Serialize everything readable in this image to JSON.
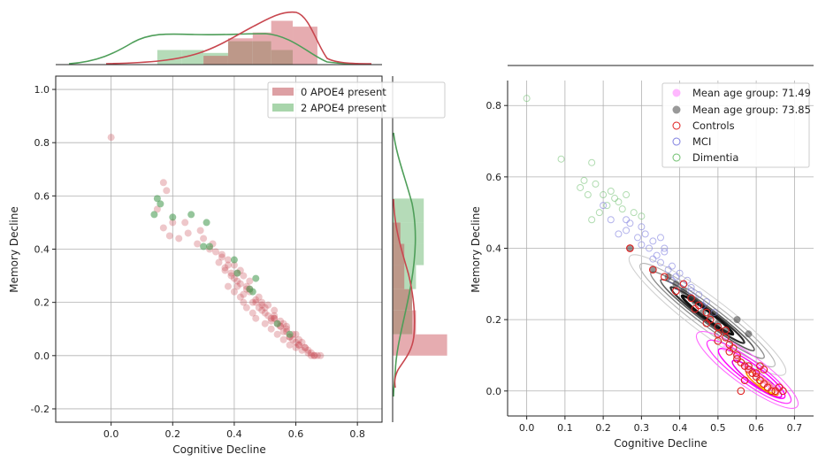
{
  "colors": {
    "red": "#c8474f",
    "green": "#4e9e59",
    "red_fill": "#dda0a4",
    "green_fill": "#a8d5ab",
    "overlap_fill": "#b8ad8c",
    "controls": "#e02020",
    "mci": "#8080e0",
    "dimentia": "#70c070",
    "magenta": "#ff00ff",
    "dark": "#3c3c3c"
  },
  "chart_data": [
    {
      "id": "left-joint",
      "type": "scatter",
      "xlabel": "Cognitive Decline",
      "ylabel": "Memory Decline",
      "xlim": [
        -0.18,
        0.88
      ],
      "ylim": [
        -0.25,
        1.05
      ],
      "xticks": [
        "0.0",
        "0.2",
        "0.4",
        "0.6",
        "0.8"
      ],
      "xtick_values": [
        0.0,
        0.2,
        0.4,
        0.6,
        0.8
      ],
      "yticks": [
        "-0.2",
        "0.0",
        "0.2",
        "0.4",
        "0.6",
        "0.8",
        "1.0"
      ],
      "ytick_values": [
        -0.2,
        0.0,
        0.2,
        0.4,
        0.6,
        0.8,
        1.0
      ],
      "grid": true,
      "legend_position": "top-right",
      "series": [
        {
          "name": "0 APOE4 present",
          "color": "#c8474f",
          "x": [
            0.0,
            0.17,
            0.18,
            0.2,
            0.17,
            0.15,
            0.19,
            0.22,
            0.25,
            0.24,
            0.28,
            0.3,
            0.29,
            0.33,
            0.32,
            0.36,
            0.38,
            0.37,
            0.4,
            0.39,
            0.42,
            0.41,
            0.43,
            0.44,
            0.45,
            0.38,
            0.4,
            0.42,
            0.45,
            0.47,
            0.48,
            0.5,
            0.49,
            0.51,
            0.52,
            0.53,
            0.55,
            0.54,
            0.56,
            0.57,
            0.58,
            0.6,
            0.59,
            0.61,
            0.62,
            0.63,
            0.64,
            0.65,
            0.66,
            0.67,
            0.68,
            0.43,
            0.44,
            0.46,
            0.47,
            0.5,
            0.52,
            0.54,
            0.56,
            0.58,
            0.48,
            0.51,
            0.53,
            0.55,
            0.57,
            0.6,
            0.62,
            0.64,
            0.66,
            0.4,
            0.41,
            0.43,
            0.46,
            0.49,
            0.52,
            0.55,
            0.58,
            0.6,
            0.35,
            0.37,
            0.39,
            0.42,
            0.44,
            0.47,
            0.5,
            0.53,
            0.56,
            0.59,
            0.61,
            0.63,
            0.65,
            0.34,
            0.36,
            0.38,
            0.41,
            0.45,
            0.49,
            0.53,
            0.57,
            0.61
          ],
          "y": [
            0.82,
            0.65,
            0.62,
            0.5,
            0.48,
            0.55,
            0.45,
            0.44,
            0.46,
            0.5,
            0.42,
            0.44,
            0.47,
            0.42,
            0.4,
            0.38,
            0.36,
            0.33,
            0.34,
            0.3,
            0.32,
            0.28,
            0.3,
            0.26,
            0.28,
            0.26,
            0.24,
            0.22,
            0.24,
            0.2,
            0.18,
            0.16,
            0.19,
            0.15,
            0.13,
            0.14,
            0.11,
            0.12,
            0.09,
            0.1,
            0.07,
            0.05,
            0.06,
            0.04,
            0.02,
            0.03,
            0.01,
            0.0,
            0.0,
            0.0,
            0.0,
            0.2,
            0.18,
            0.16,
            0.14,
            0.12,
            0.1,
            0.08,
            0.06,
            0.04,
            0.22,
            0.19,
            0.17,
            0.13,
            0.11,
            0.08,
            0.05,
            0.02,
            0.0,
            0.29,
            0.26,
            0.23,
            0.2,
            0.17,
            0.14,
            0.11,
            0.07,
            0.03,
            0.35,
            0.32,
            0.31,
            0.27,
            0.25,
            0.21,
            0.18,
            0.15,
            0.12,
            0.08,
            0.06,
            0.03,
            0.01,
            0.39,
            0.37,
            0.34,
            0.31,
            0.25,
            0.2,
            0.14,
            0.09,
            0.04
          ]
        },
        {
          "name": "2 APOE4 present",
          "color": "#4e9e59",
          "x": [
            0.15,
            0.16,
            0.2,
            0.14,
            0.26,
            0.31,
            0.3,
            0.32,
            0.4,
            0.41,
            0.47,
            0.45,
            0.46,
            0.54,
            0.58
          ],
          "y": [
            0.59,
            0.57,
            0.52,
            0.53,
            0.53,
            0.5,
            0.41,
            0.41,
            0.36,
            0.31,
            0.29,
            0.25,
            0.24,
            0.12,
            0.08
          ]
        }
      ],
      "x_hist": {
        "bin_edges": [
          0.15,
          0.23,
          0.3,
          0.38,
          0.46,
          0.52,
          0.59,
          0.67
        ],
        "red_counts": [
          0,
          0,
          3,
          9,
          11,
          15,
          13
        ],
        "green_counts": [
          5,
          5,
          4,
          8,
          8,
          5,
          0
        ]
      },
      "y_hist": {
        "bin_edges": [
          0.0,
          0.08,
          0.17,
          0.25,
          0.34,
          0.42,
          0.5,
          0.59
        ],
        "red_counts": [
          14,
          6,
          5,
          3,
          3,
          2,
          0
        ],
        "green_counts": [
          0,
          5,
          5,
          6,
          8,
          8,
          8
        ]
      }
    },
    {
      "id": "right-scatter",
      "type": "scatter",
      "xlabel": "Cognitive Decline",
      "ylabel": "Memory Decline",
      "xlim": [
        -0.05,
        0.75
      ],
      "ylim": [
        -0.07,
        0.87
      ],
      "xticks": [
        "0.0",
        "0.1",
        "0.2",
        "0.3",
        "0.4",
        "0.5",
        "0.6",
        "0.7"
      ],
      "xtick_values": [
        0.0,
        0.1,
        0.2,
        0.3,
        0.4,
        0.5,
        0.6,
        0.7
      ],
      "yticks": [
        "0.0",
        "0.2",
        "0.4",
        "0.6",
        "0.8"
      ],
      "ytick_values": [
        0.0,
        0.2,
        0.4,
        0.6,
        0.8
      ],
      "grid": true,
      "legend_position": "top-right",
      "legend": [
        {
          "name": "Mean age group: 71.49",
          "style": "filled",
          "color": "#ff00ff"
        },
        {
          "name": "Mean age group: 73.85",
          "style": "filled",
          "color": "#3c3c3c"
        },
        {
          "name": "Controls",
          "style": "hollow",
          "color": "#e02020"
        },
        {
          "name": "MCI",
          "style": "hollow",
          "color": "#8080e0"
        },
        {
          "name": "Dimentia",
          "style": "hollow",
          "color": "#70c070"
        }
      ],
      "controls": {
        "x": [
          0.27,
          0.33,
          0.36,
          0.39,
          0.41,
          0.43,
          0.45,
          0.47,
          0.48,
          0.5,
          0.5,
          0.52,
          0.53,
          0.54,
          0.55,
          0.56,
          0.56,
          0.57,
          0.58,
          0.59,
          0.6,
          0.61,
          0.62,
          0.62,
          0.63,
          0.64,
          0.65,
          0.66,
          0.67,
          0.5,
          0.53,
          0.55,
          0.58,
          0.6,
          0.47,
          0.44,
          0.52,
          0.57,
          0.61
        ],
        "y": [
          0.4,
          0.34,
          0.32,
          0.28,
          0.3,
          0.26,
          0.24,
          0.22,
          0.2,
          0.18,
          0.16,
          0.15,
          0.13,
          0.12,
          0.1,
          0.08,
          0.0,
          0.07,
          0.06,
          0.05,
          0.04,
          0.03,
          0.02,
          0.06,
          0.01,
          0.0,
          0.0,
          0.01,
          0.0,
          0.14,
          0.11,
          0.09,
          0.07,
          0.05,
          0.19,
          0.23,
          0.17,
          0.03,
          0.07
        ]
      },
      "mci": {
        "x": [
          0.2,
          0.22,
          0.24,
          0.26,
          0.27,
          0.29,
          0.3,
          0.32,
          0.33,
          0.34,
          0.35,
          0.36,
          0.37,
          0.38,
          0.39,
          0.4,
          0.41,
          0.42,
          0.43,
          0.45,
          0.47,
          0.3,
          0.33,
          0.36,
          0.38,
          0.4,
          0.26,
          0.43,
          0.46,
          0.49,
          0.31,
          0.35
        ],
        "y": [
          0.52,
          0.48,
          0.44,
          0.45,
          0.47,
          0.43,
          0.41,
          0.4,
          0.42,
          0.38,
          0.36,
          0.39,
          0.34,
          0.35,
          0.32,
          0.33,
          0.3,
          0.31,
          0.28,
          0.27,
          0.25,
          0.46,
          0.37,
          0.4,
          0.31,
          0.29,
          0.48,
          0.29,
          0.24,
          0.22,
          0.44,
          0.43
        ]
      },
      "dimentia": {
        "x": [
          0.0,
          0.09,
          0.15,
          0.16,
          0.17,
          0.18,
          0.19,
          0.2,
          0.21,
          0.22,
          0.24,
          0.25,
          0.26,
          0.28,
          0.3,
          0.14,
          0.17,
          0.23
        ],
        "y": [
          0.82,
          0.65,
          0.59,
          0.55,
          0.64,
          0.58,
          0.5,
          0.55,
          0.52,
          0.56,
          0.53,
          0.51,
          0.55,
          0.5,
          0.49,
          0.57,
          0.48,
          0.54
        ]
      },
      "mean_age_7149": {
        "x": [
          0.52,
          0.55,
          0.57,
          0.6,
          0.62,
          0.63,
          0.64,
          0.65,
          0.66,
          0.58,
          0.61
        ],
        "y": [
          0.12,
          0.1,
          0.07,
          0.05,
          0.03,
          0.02,
          0.01,
          0.01,
          0.0,
          0.06,
          0.04
        ]
      },
      "mean_age_7385": {
        "x": [
          0.27,
          0.33,
          0.37,
          0.39,
          0.41,
          0.43,
          0.44,
          0.46,
          0.48,
          0.5,
          0.52,
          0.55,
          0.58
        ],
        "y": [
          0.4,
          0.34,
          0.32,
          0.3,
          0.28,
          0.26,
          0.25,
          0.22,
          0.21,
          0.19,
          0.17,
          0.2,
          0.16
        ]
      }
    }
  ]
}
